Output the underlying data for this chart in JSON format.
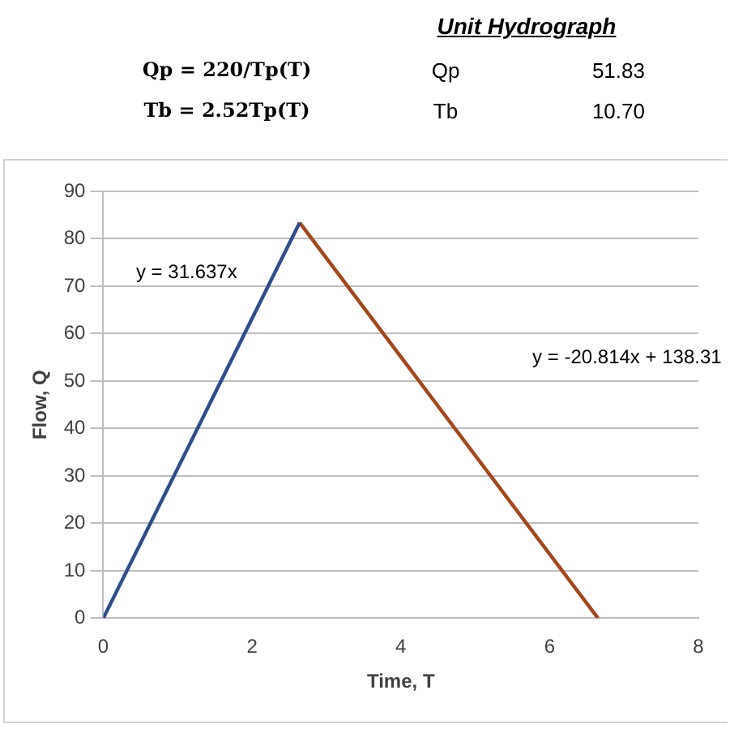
{
  "chart_data": {
    "type": "line",
    "title": "Unit Hydrograph",
    "xlabel": "Time, T",
    "ylabel": "Flow, Q",
    "series": [
      {
        "color": "#2e4d8c",
        "x": [
          0,
          2.64
        ],
        "values": [
          0,
          83.4
        ]
      },
      {
        "color": "#a3471c",
        "x": [
          2.64,
          6.65
        ],
        "values": [
          83.4,
          0
        ]
      }
    ],
    "xlim": [
      0,
      8
    ],
    "xticks": [
      0,
      2,
      4,
      6,
      8
    ],
    "ylim": [
      0,
      90
    ],
    "yticks": [
      0,
      10,
      20,
      30,
      40,
      50,
      60,
      70,
      80,
      90
    ],
    "grid": "y",
    "legend": false,
    "marker": "none",
    "line_style": "solid",
    "annotations": [
      "Qp = 220/Tp(T)",
      "Qp",
      "51.83",
      "Tb = 2.52Tp(T)",
      "Tb",
      "10.70",
      "y = 31.637x",
      "y = -20.814x + 138.31"
    ]
  }
}
